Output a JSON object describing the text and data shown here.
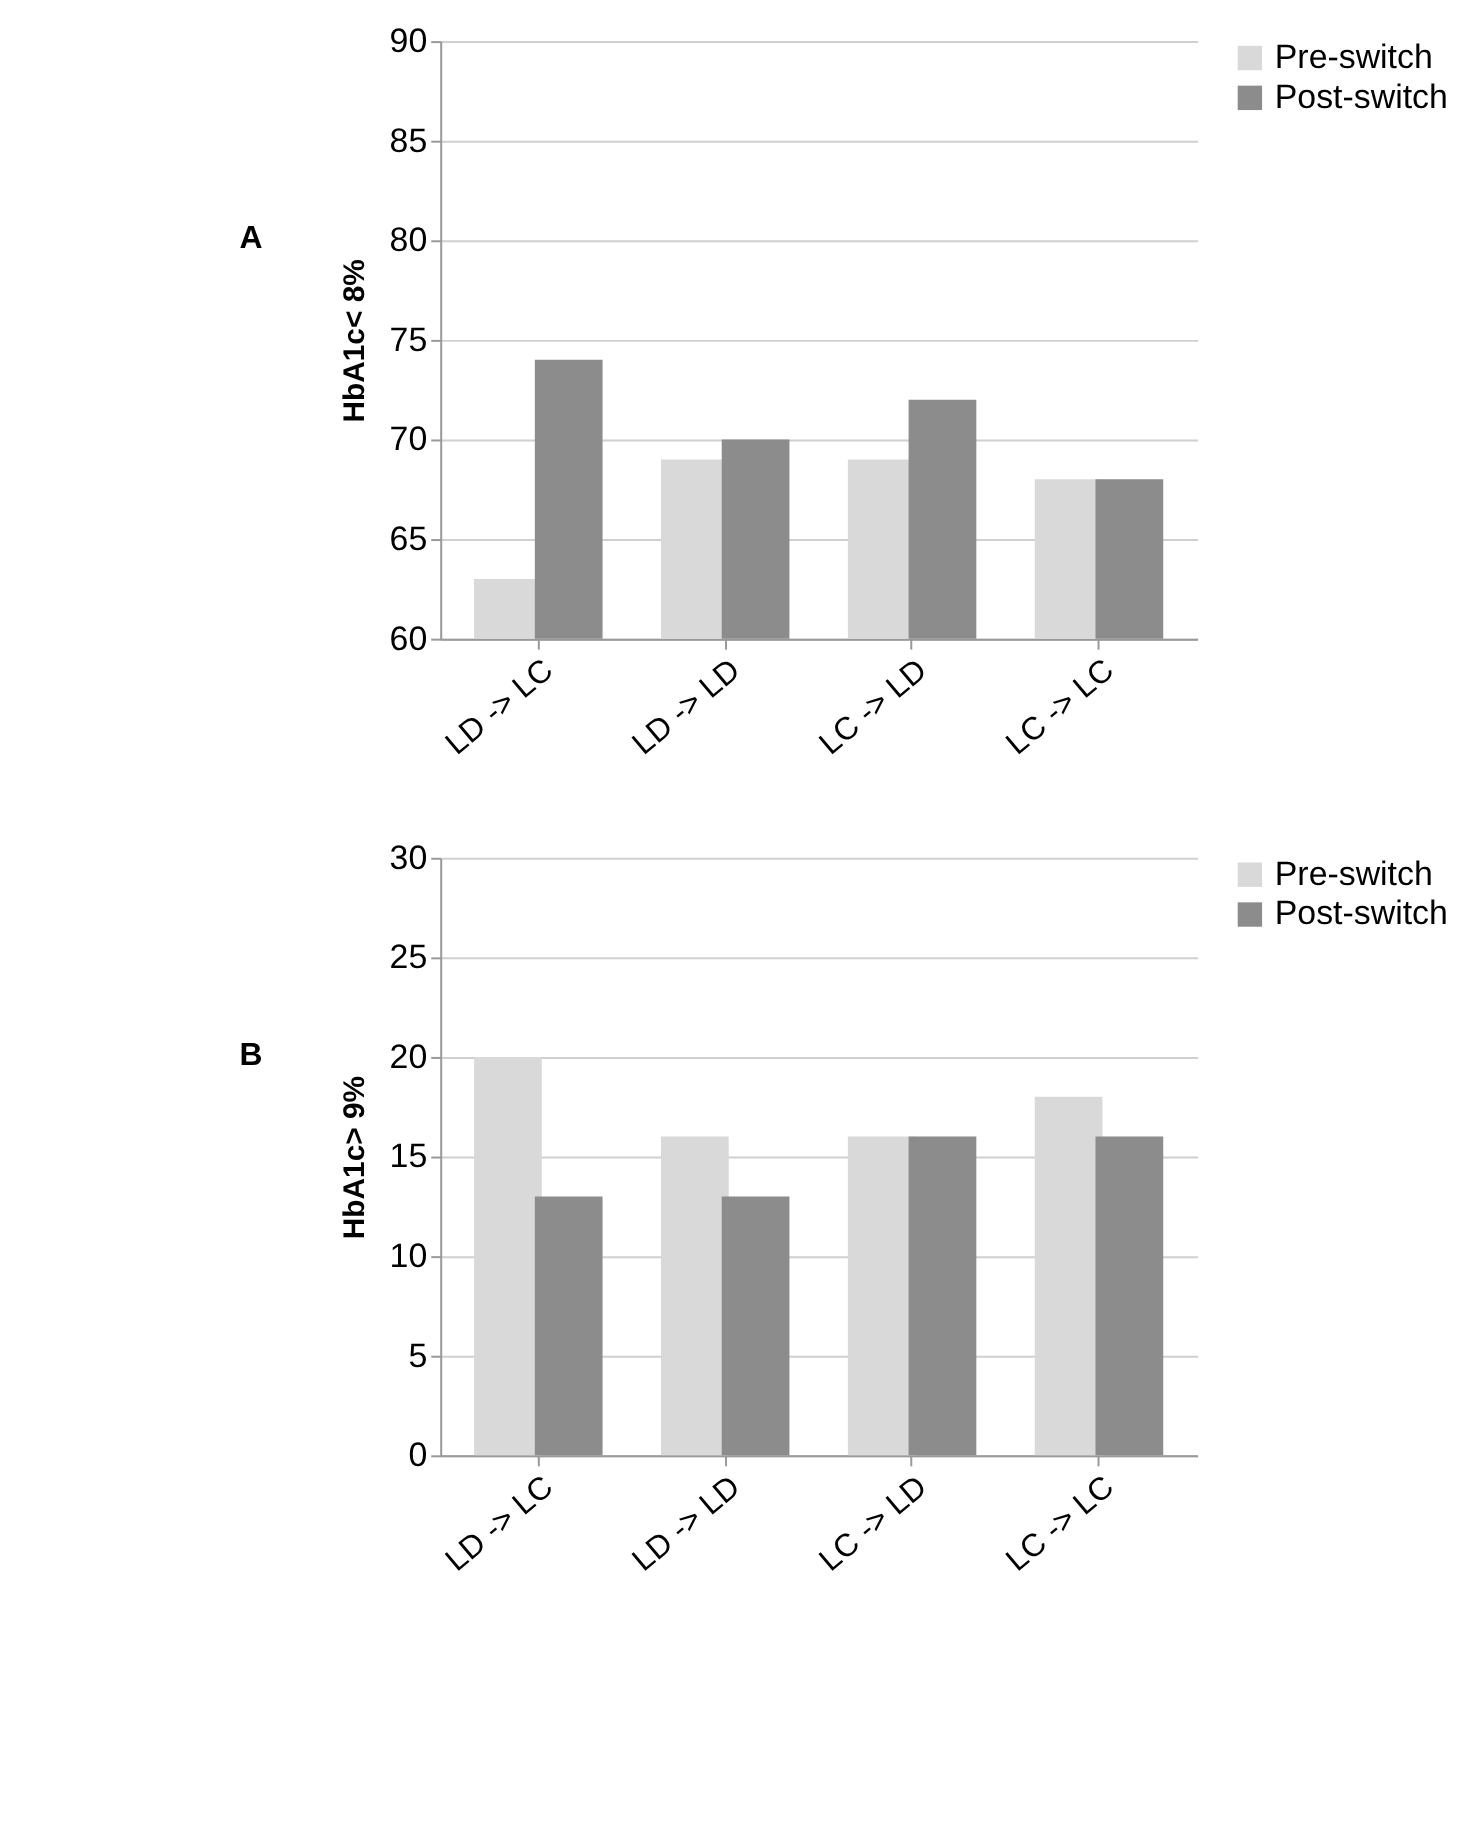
{
  "chart_data": [
    {
      "type": "bar",
      "annotations": [
        "A"
      ],
      "ylabel": "HbA1c< 8%",
      "categories": [
        "LD -> LC",
        "LD -> LD",
        "LC -> LD",
        "LC -> LC"
      ],
      "ylim": [
        60,
        90
      ],
      "yticks": [
        60,
        65,
        70,
        75,
        80,
        85,
        90
      ],
      "grid": "y",
      "legend": "right",
      "series": [
        {
          "name": "Pre-switch",
          "color": "#d9d9d9",
          "values": [
            63,
            69,
            69,
            68
          ]
        },
        {
          "name": "Post-switch",
          "color": "#8c8c8c",
          "values": [
            74,
            70,
            72,
            68
          ]
        }
      ]
    },
    {
      "type": "bar",
      "annotations": [
        "B"
      ],
      "ylabel": "HbA1c> 9%",
      "categories": [
        "LD -> LC",
        "LD -> LD",
        "LC -> LD",
        "LC -> LC"
      ],
      "ylim": [
        0,
        30
      ],
      "yticks": [
        0,
        5,
        10,
        15,
        20,
        25,
        30
      ],
      "grid": "y",
      "legend": "right",
      "series": [
        {
          "name": "Pre-switch",
          "color": "#d9d9d9",
          "values": [
            20,
            16,
            16,
            18
          ]
        },
        {
          "name": "Post-switch",
          "color": "#8c8c8c",
          "values": [
            13,
            13,
            16,
            16
          ]
        }
      ]
    }
  ]
}
